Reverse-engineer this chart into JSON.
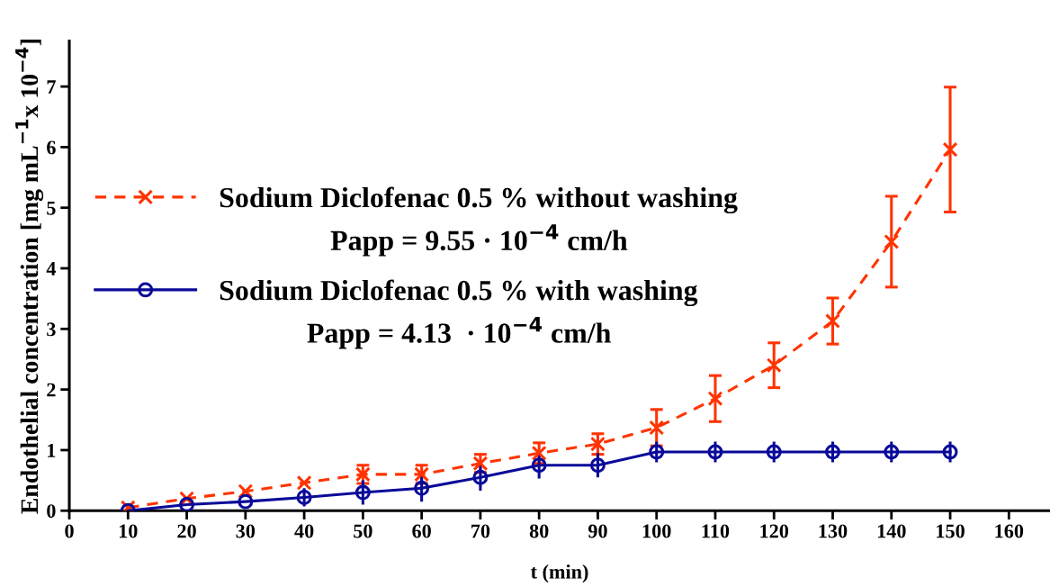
{
  "chart_data": {
    "type": "line",
    "xlabel": "t (min)",
    "ylabel": "Endothelial concentration [mg mL$^{−1}$x 10$^{−4}$]",
    "x": [
      10,
      20,
      30,
      40,
      50,
      60,
      70,
      80,
      90,
      100,
      110,
      120,
      130,
      140,
      150
    ],
    "series": [
      {
        "name": "Sodium Diclofenac 0.5 % without washing",
        "color": "#ff3300",
        "marker": "cross",
        "line_style": "dashed",
        "values": [
          0.05,
          0.2,
          0.32,
          0.46,
          0.6,
          0.6,
          0.78,
          0.95,
          1.1,
          1.37,
          1.85,
          2.4,
          3.13,
          4.44,
          5.96
        ],
        "errors": [
          null,
          null,
          null,
          null,
          0.15,
          0.15,
          0.15,
          0.17,
          0.17,
          0.3,
          0.38,
          0.37,
          0.38,
          0.75,
          1.03
        ]
      },
      {
        "name": "Sodium Diclofenac 0.5 % with washing",
        "color": "#0a0a99",
        "marker": "circle",
        "line_style": "solid",
        "values": [
          0.0,
          0.1,
          0.15,
          0.22,
          0.3,
          0.37,
          0.55,
          0.75,
          0.75,
          0.97,
          0.97,
          0.97,
          0.97,
          0.97,
          0.97
        ],
        "errors": [
          null,
          null,
          null,
          0.15,
          0.2,
          0.22,
          0.22,
          0.22,
          0.2,
          0.17,
          0.17,
          0.17,
          0.17,
          0.17,
          0.17
        ]
      }
    ],
    "annotations": [
      "Papp = 9.55 · 10$^{−4}$ cm/h",
      "Papp = 4.13  · 10$^{−4}$ cm/h"
    ],
    "xlim": [
      0,
      167
    ],
    "xticks": [
      0,
      10,
      20,
      30,
      40,
      50,
      60,
      70,
      80,
      90,
      100,
      110,
      120,
      130,
      140,
      150,
      160
    ],
    "ylim": [
      0,
      7.75
    ],
    "yticks": [
      0,
      1,
      2,
      3,
      4,
      5,
      6,
      7
    ],
    "legend": "center left",
    "grid": false
  }
}
